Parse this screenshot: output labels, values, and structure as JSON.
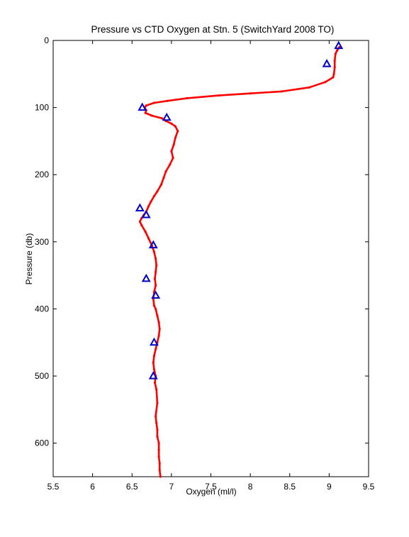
{
  "chart_data": {
    "type": "line",
    "title": "Pressure vs CTD Oxygen at Stn. 5 (SwitchYard 2008 TO)",
    "xlabel": "Oxygen (ml/l)",
    "ylabel": "Pressure (db)",
    "xlim": [
      5.5,
      9.5
    ],
    "ylim": [
      0,
      650
    ],
    "y_reversed": true,
    "xticks": [
      5.5,
      6,
      6.5,
      7,
      7.5,
      8,
      8.5,
      9,
      9.5
    ],
    "xtick_labels": [
      "5.5",
      "6",
      "6.5",
      "7",
      "7.5",
      "8",
      "8.5",
      "9",
      "9.5"
    ],
    "yticks": [
      0,
      100,
      200,
      300,
      400,
      500,
      600
    ],
    "ytick_labels": [
      "0",
      "100",
      "200",
      "300",
      "400",
      "500",
      "600"
    ],
    "grid": false,
    "series": [
      {
        "type": "line",
        "color": "#ff0000",
        "marker": "dot",
        "x": [
          9.13,
          9.1,
          9.08,
          9.07,
          9.07,
          9.06,
          9.05,
          8.95,
          8.75,
          8.4,
          8.0,
          7.6,
          7.2,
          6.95,
          6.78,
          6.68,
          6.66,
          6.68,
          6.67,
          6.75,
          6.88,
          6.93,
          7.0,
          7.05,
          7.08,
          7.05,
          7.03,
          7.0,
          7.02,
          6.98,
          6.93,
          6.9,
          6.87,
          6.82,
          6.78,
          6.74,
          6.71,
          6.68,
          6.65,
          6.62,
          6.6,
          6.62,
          6.67,
          6.71,
          6.75,
          6.78,
          6.8,
          6.81,
          6.8,
          6.79,
          6.8,
          6.78,
          6.77,
          6.78,
          6.8,
          6.82,
          6.84,
          6.85,
          6.84,
          6.82,
          6.8,
          6.78,
          6.77,
          6.78,
          6.8,
          6.79,
          6.81,
          6.82,
          6.8,
          6.81,
          6.82,
          6.82,
          6.84,
          6.84,
          6.84,
          6.85,
          6.85,
          6.86
        ],
        "y": [
          10,
          15,
          20,
          30,
          40,
          50,
          55,
          62,
          70,
          76,
          79,
          82,
          86,
          90,
          93,
          97,
          100,
          104,
          108,
          112,
          116,
          120,
          124,
          128,
          135,
          145,
          155,
          165,
          175,
          185,
          195,
          205,
          215,
          225,
          232,
          240,
          247,
          255,
          260,
          265,
          270,
          275,
          285,
          295,
          305,
          315,
          325,
          335,
          345,
          355,
          365,
          375,
          385,
          395,
          400,
          410,
          420,
          430,
          440,
          450,
          460,
          470,
          480,
          490,
          500,
          510,
          520,
          540,
          560,
          570,
          580,
          590,
          600,
          610,
          620,
          630,
          640,
          650
        ]
      },
      {
        "type": "scatter",
        "color": "#0000cc",
        "marker": "triangle",
        "x": [
          9.12,
          8.97,
          6.63,
          6.94,
          6.6,
          6.68,
          6.77,
          6.68,
          6.8,
          6.78,
          6.77
        ],
        "y": [
          8,
          35,
          100,
          115,
          250,
          260,
          305,
          355,
          380,
          450,
          500
        ]
      }
    ]
  }
}
